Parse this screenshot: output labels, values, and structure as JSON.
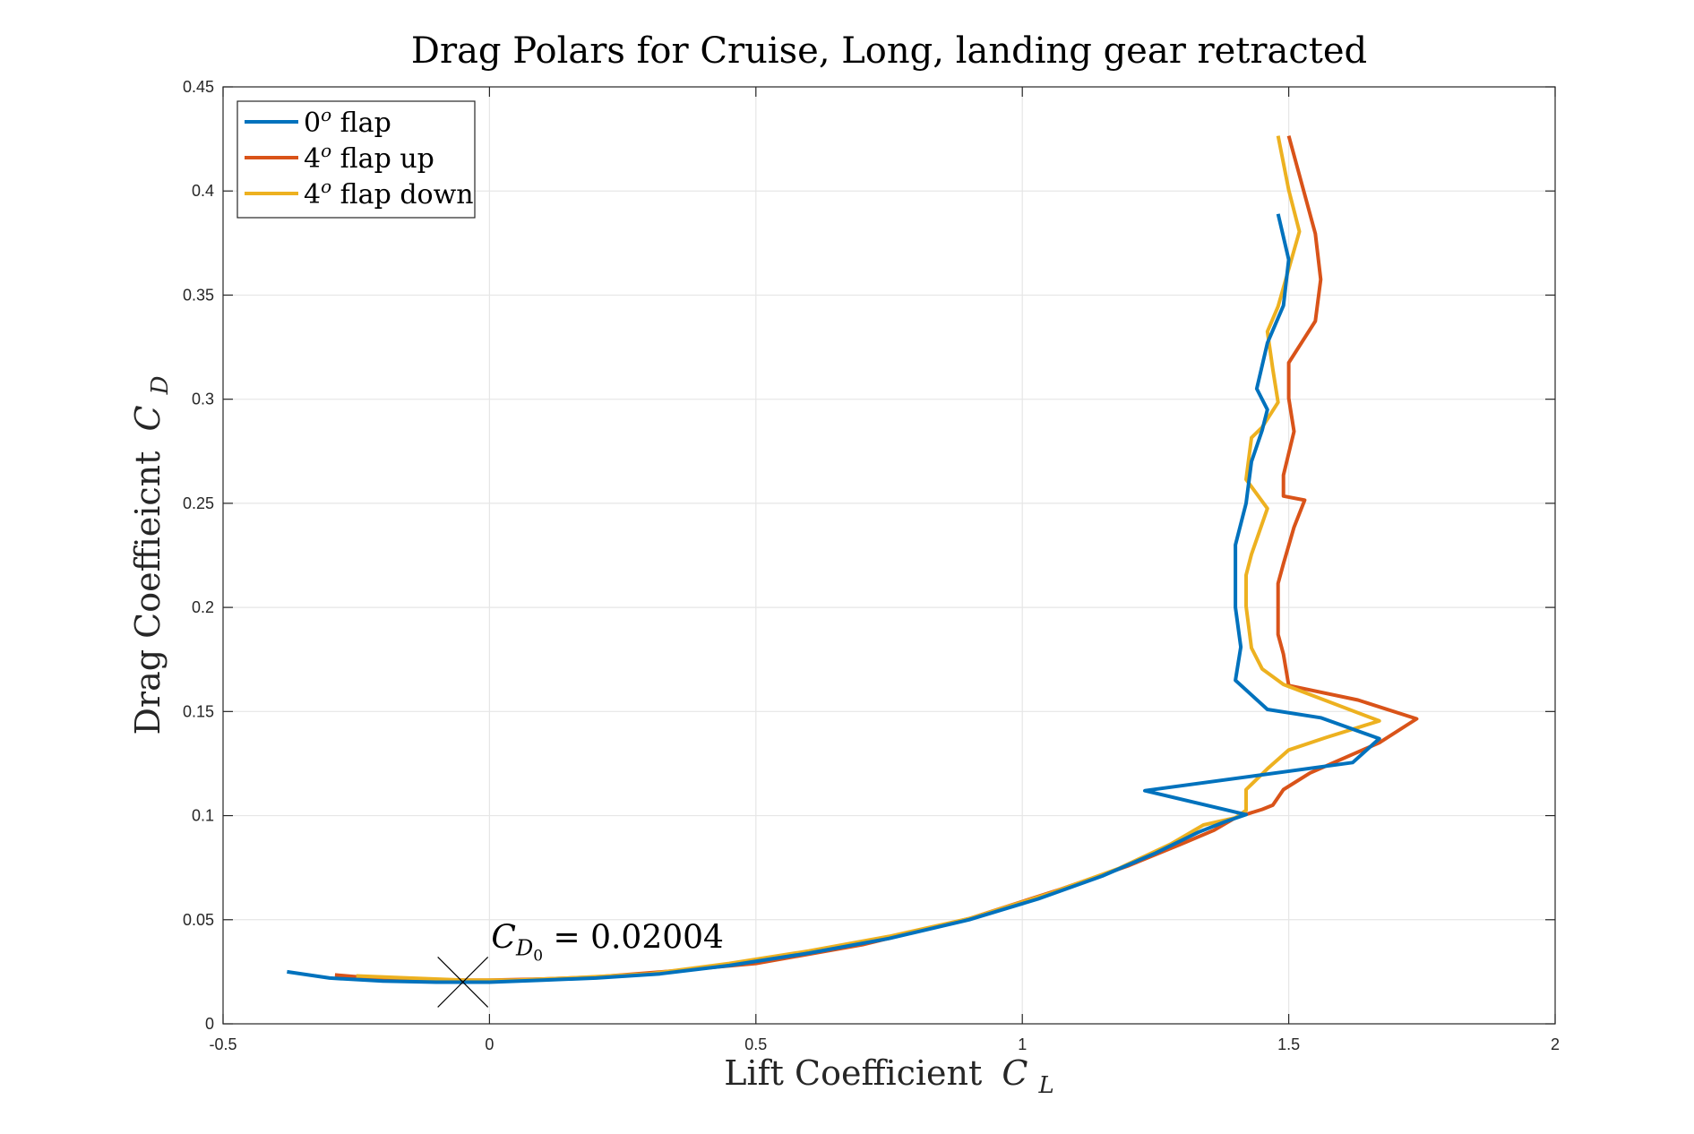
{
  "chart_data": {
    "type": "line",
    "title": "Drag Polars for Cruise, Long, landing gear retracted",
    "xlabel": "Lift Coefficient",
    "xlabel_symbol": "C",
    "xlabel_subscript": "L",
    "ylabel": "Drag Coeffieicnt",
    "ylabel_symbol": "C",
    "ylabel_subscript": "D",
    "xlim": [
      -0.5,
      2
    ],
    "ylim": [
      0,
      0.45
    ],
    "xticks": [
      -0.5,
      0,
      0.5,
      1,
      1.5,
      2
    ],
    "xtick_labels": [
      "-0.5",
      "0",
      "0.5",
      "1",
      "1.5",
      "2"
    ],
    "yticks": [
      0,
      0.05,
      0.1,
      0.15,
      0.2,
      0.25,
      0.3,
      0.35,
      0.4,
      0.45
    ],
    "ytick_labels": [
      "0",
      "0.05",
      "0.1",
      "0.15",
      "0.2",
      "0.25",
      "0.3",
      "0.35",
      "0.4",
      "0.45"
    ],
    "grid": true,
    "legend_position": "top-left",
    "colors": {
      "series_0": "#0072BD",
      "series_1": "#D95319",
      "series_2": "#EDB120",
      "axis": "#262626",
      "grid": "#e6e6e6",
      "title": "#000000"
    },
    "series": [
      {
        "name": "0",
        "name_superscript": "o",
        "name_suffix": " flap",
        "x": [
          -0.38,
          -0.3,
          -0.2,
          -0.1,
          0.0,
          0.1,
          0.2,
          0.32,
          0.45,
          0.6,
          0.75,
          0.9,
          1.03,
          1.15,
          1.25,
          1.33,
          1.38,
          1.42,
          1.23,
          1.62,
          1.67,
          1.56,
          1.46,
          1.4,
          1.41,
          1.4,
          1.4,
          1.4,
          1.42,
          1.43,
          1.45,
          1.46,
          1.44,
          1.46,
          1.49,
          1.5,
          1.48
        ],
        "y": [
          0.025,
          0.022,
          0.0205,
          0.02,
          0.02,
          0.021,
          0.022,
          0.024,
          0.028,
          0.034,
          0.041,
          0.05,
          0.06,
          0.071,
          0.082,
          0.092,
          0.097,
          0.1005,
          0.112,
          0.1255,
          0.137,
          0.147,
          0.151,
          0.165,
          0.181,
          0.2,
          0.215,
          0.23,
          0.25,
          0.27,
          0.285,
          0.295,
          0.305,
          0.327,
          0.345,
          0.367,
          0.389
        ]
      },
      {
        "name": "4",
        "name_superscript": "o",
        "name_suffix": " flap up",
        "x": [
          -0.29,
          -0.2,
          -0.1,
          0.0,
          0.1,
          0.2,
          0.35,
          0.5,
          0.7,
          0.9,
          1.07,
          1.2,
          1.3,
          1.36,
          1.4,
          1.45,
          1.47,
          1.49,
          1.54,
          1.67,
          1.74,
          1.63,
          1.5,
          1.49,
          1.48,
          1.48,
          1.49,
          1.51,
          1.53,
          1.49,
          1.49,
          1.51,
          1.5,
          1.5,
          1.55,
          1.56,
          1.55,
          1.5
        ],
        "y": [
          0.0235,
          0.0215,
          0.021,
          0.021,
          0.0215,
          0.0225,
          0.0255,
          0.029,
          0.038,
          0.0505,
          0.0645,
          0.076,
          0.0865,
          0.093,
          0.099,
          0.103,
          0.105,
          0.1125,
          0.1205,
          0.135,
          0.1465,
          0.1555,
          0.1625,
          0.1775,
          0.187,
          0.2115,
          0.221,
          0.2385,
          0.2515,
          0.2535,
          0.2635,
          0.2845,
          0.3005,
          0.3175,
          0.3375,
          0.3575,
          0.3795,
          0.4265
        ]
      },
      {
        "name": "4",
        "name_superscript": "o",
        "name_suffix": " flap down",
        "x": [
          -0.25,
          -0.15,
          -0.05,
          0.05,
          0.15,
          0.3,
          0.45,
          0.6,
          0.75,
          0.9,
          1.05,
          1.18,
          1.28,
          1.34,
          1.4,
          1.42,
          1.42,
          1.46,
          1.5,
          1.57,
          1.67,
          1.49,
          1.45,
          1.43,
          1.42,
          1.42,
          1.43,
          1.46,
          1.42,
          1.43,
          1.45,
          1.48,
          1.47,
          1.46,
          1.48,
          1.52,
          1.5,
          1.48
        ],
        "y": [
          0.023,
          0.022,
          0.021,
          0.021,
          0.022,
          0.024,
          0.029,
          0.035,
          0.042,
          0.0505,
          0.0625,
          0.0745,
          0.0865,
          0.0955,
          0.099,
          0.1025,
          0.1125,
          0.1225,
          0.1315,
          0.1375,
          0.1455,
          0.163,
          0.1705,
          0.1805,
          0.2005,
          0.2155,
          0.2255,
          0.2475,
          0.2615,
          0.2815,
          0.2865,
          0.2985,
          0.3145,
          0.3325,
          0.3445,
          0.3805,
          0.4005,
          0.4265
        ]
      }
    ],
    "annotation": {
      "marker": "x",
      "marker_x": -0.05,
      "marker_y": 0.02004,
      "label_symbol": "C",
      "label_subscript": "D",
      "label_subsubscript": "0",
      "label_value": " = 0.02004",
      "label_x": 0.0,
      "label_y": 0.038
    }
  }
}
